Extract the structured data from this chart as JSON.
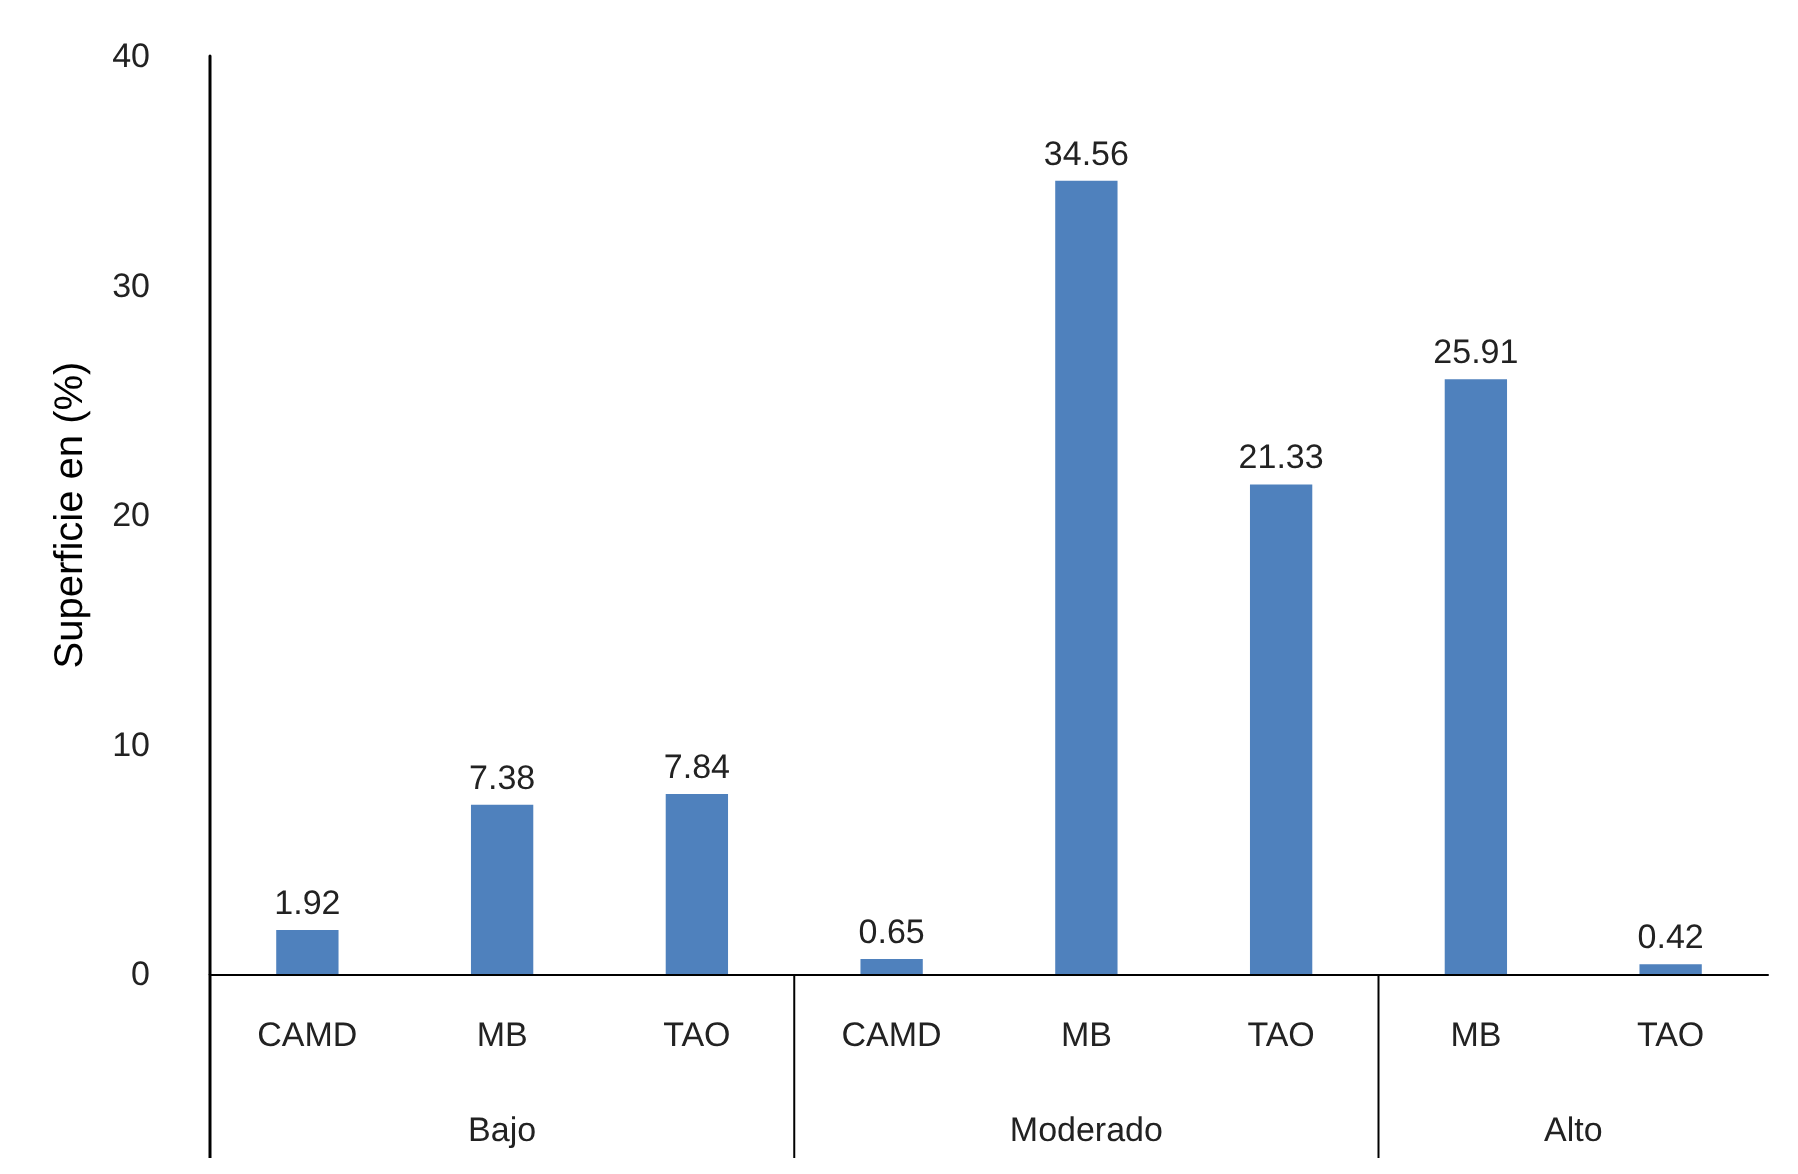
{
  "chart_data": {
    "type": "bar",
    "ylabel": "Superficie en (%)",
    "categories": [
      "CAMD",
      "MB",
      "TAO",
      "CAMD",
      "MB",
      "TAO",
      "MB",
      "TAO"
    ],
    "values": [
      1.92,
      7.38,
      7.84,
      0.65,
      34.56,
      21.33,
      25.91,
      0.42
    ],
    "color": "#4f81bd",
    "ylim": [
      0,
      40
    ],
    "yticks": [
      0,
      10,
      20,
      30,
      40
    ],
    "grid": false,
    "data_labels": true,
    "annotations": [
      "Bajo",
      "Moderado",
      "Alto"
    ]
  }
}
